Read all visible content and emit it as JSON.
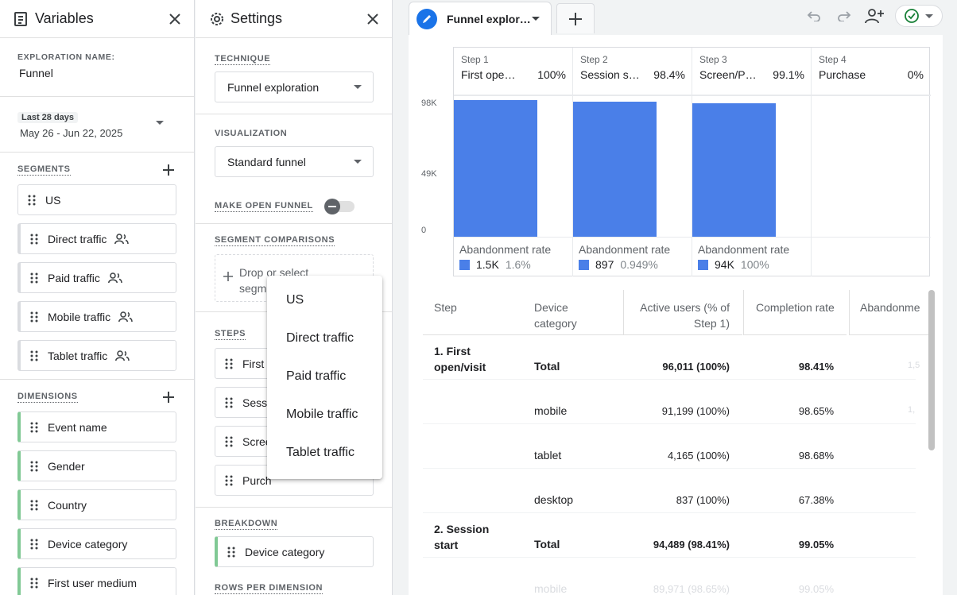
{
  "variables": {
    "title": "Variables",
    "exploration_name_label": "EXPLORATION NAME:",
    "exploration_name": "Funnel",
    "date_chip": "Last 28 days",
    "date_range": "May 26 - Jun 22, 2025",
    "segments_label": "SEGMENTS",
    "segments": [
      {
        "label": "US",
        "has_user_icon": false
      },
      {
        "label": "Direct traffic",
        "has_user_icon": true
      },
      {
        "label": "Paid traffic",
        "has_user_icon": true
      },
      {
        "label": "Mobile traffic",
        "has_user_icon": true
      },
      {
        "label": "Tablet traffic",
        "has_user_icon": true
      }
    ],
    "dimensions_label": "DIMENSIONS",
    "dimensions": [
      "Event name",
      "Gender",
      "Country",
      "Device category",
      "First user medium"
    ]
  },
  "settings": {
    "title": "Settings",
    "technique_label": "TECHNIQUE",
    "technique_value": "Funnel exploration",
    "visualization_label": "VISUALIZATION",
    "visualization_value": "Standard funnel",
    "open_funnel_label": "MAKE OPEN FUNNEL",
    "open_funnel_on": false,
    "segment_comparisons_label": "SEGMENT COMPARISONS",
    "drop_line1": "Drop or select",
    "drop_line2": "segm",
    "steps_label": "STEPS",
    "steps": [
      "First",
      "Sessi",
      "Scree",
      "Purch"
    ],
    "breakdown_label": "BREAKDOWN",
    "breakdown_value": "Device category",
    "rows_per_dimension_label": "ROWS PER DIMENSION"
  },
  "segment_menu": {
    "items": [
      "US",
      "Direct traffic",
      "Paid traffic",
      "Mobile traffic",
      "Tablet traffic"
    ]
  },
  "tabs": {
    "active_title": "Funnel explor…",
    "add_label": "+"
  },
  "funnel_chart": {
    "y_ticks": [
      "98K",
      "49K",
      "0"
    ],
    "steps": [
      {
        "num": "Step 1",
        "name": "First ope…",
        "pct": "100%",
        "value": 96011,
        "ab_value": "1.5K",
        "ab_pct": "1.6%"
      },
      {
        "num": "Step 2",
        "name": "Session s…",
        "pct": "98.4%",
        "value": 94489,
        "ab_value": "897",
        "ab_pct": "0.949%"
      },
      {
        "num": "Step 3",
        "name": "Screen/P…",
        "pct": "99.1%",
        "value": 93592,
        "ab_value": "94K",
        "ab_pct": "100%"
      },
      {
        "num": "Step 4",
        "name": "Purchase",
        "pct": "0%",
        "value": 0,
        "ab_value": "",
        "ab_pct": ""
      }
    ],
    "y_max": 98000,
    "abandon_label": "Abandonment rate",
    "bar_color": "#4a7fe8"
  },
  "table": {
    "headers": {
      "step": "Step",
      "device": "Device category",
      "active": "Active users (% of Step 1)",
      "completion": "Completion rate",
      "abandon": "Abandonme"
    },
    "rows": [
      {
        "step": "1. First open/visit",
        "device": "Total",
        "active": "96,011 (100%)",
        "completion": "98.41%",
        "abandon": "1,5",
        "bold": true
      },
      {
        "step": "",
        "device": "mobile",
        "active": "91,199 (100%)",
        "completion": "98.65%",
        "abandon": "1,",
        "bold": false
      },
      {
        "step": "",
        "device": "tablet",
        "active": "4,165 (100%)",
        "completion": "98.68%",
        "abandon": "",
        "bold": false
      },
      {
        "step": "",
        "device": "desktop",
        "active": "837 (100%)",
        "completion": "67.38%",
        "abandon": "",
        "bold": false
      },
      {
        "step": "2. Session start",
        "device": "Total",
        "active": "94,489 (98.41%)",
        "completion": "99.05%",
        "abandon": "",
        "bold": true
      },
      {
        "step": "",
        "device": "mobile",
        "active": "89,971 (98.65%)",
        "completion": "99.05%",
        "abandon": "",
        "bold": false
      }
    ]
  }
}
